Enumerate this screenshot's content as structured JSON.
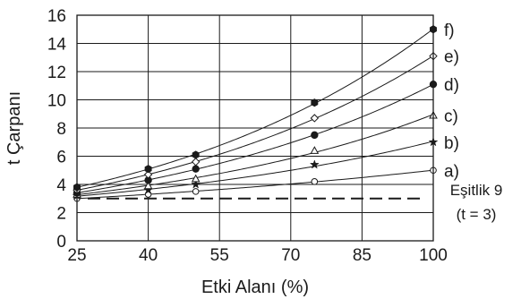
{
  "chart_data": {
    "type": "line",
    "xlabel": "Etki Alanı (%)",
    "ylabel": "t Çarpanı",
    "xlim": [
      25,
      100
    ],
    "ylim": [
      0,
      16
    ],
    "x_ticks": [
      "25",
      "40",
      "55",
      "70",
      "85",
      "100"
    ],
    "y_ticks": [
      "0",
      "2",
      "4",
      "6",
      "8",
      "10",
      "12",
      "14",
      "16"
    ],
    "x_tick_values": [
      25,
      40,
      55,
      70,
      85,
      100
    ],
    "y_tick_values": [
      0,
      2,
      4,
      6,
      8,
      10,
      12,
      14,
      16
    ],
    "grid": true,
    "x": [
      25,
      40,
      50,
      75,
      100
    ],
    "series": [
      {
        "name": "a)",
        "marker": "circle-open",
        "values": [
          3.0,
          3.3,
          3.5,
          4.2,
          5.0
        ]
      },
      {
        "name": "b)",
        "marker": "star",
        "values": [
          3.2,
          3.6,
          4.0,
          5.4,
          7.0
        ]
      },
      {
        "name": "c)",
        "marker": "triangle-open",
        "values": [
          3.3,
          3.9,
          4.4,
          6.4,
          8.9
        ]
      },
      {
        "name": "d)",
        "marker": "circle-filled",
        "values": [
          3.4,
          4.3,
          5.1,
          7.5,
          11.1
        ]
      },
      {
        "name": "e)",
        "marker": "diamond-open",
        "values": [
          3.6,
          4.7,
          5.6,
          8.7,
          13.1
        ]
      },
      {
        "name": "f)",
        "marker": "hexagon-filled",
        "values": [
          3.8,
          5.1,
          6.1,
          9.8,
          15.0
        ]
      }
    ],
    "reference_line": {
      "y": 3,
      "label_line1": "Eşitlik 9",
      "label_line2": "(t = 3)"
    }
  }
}
